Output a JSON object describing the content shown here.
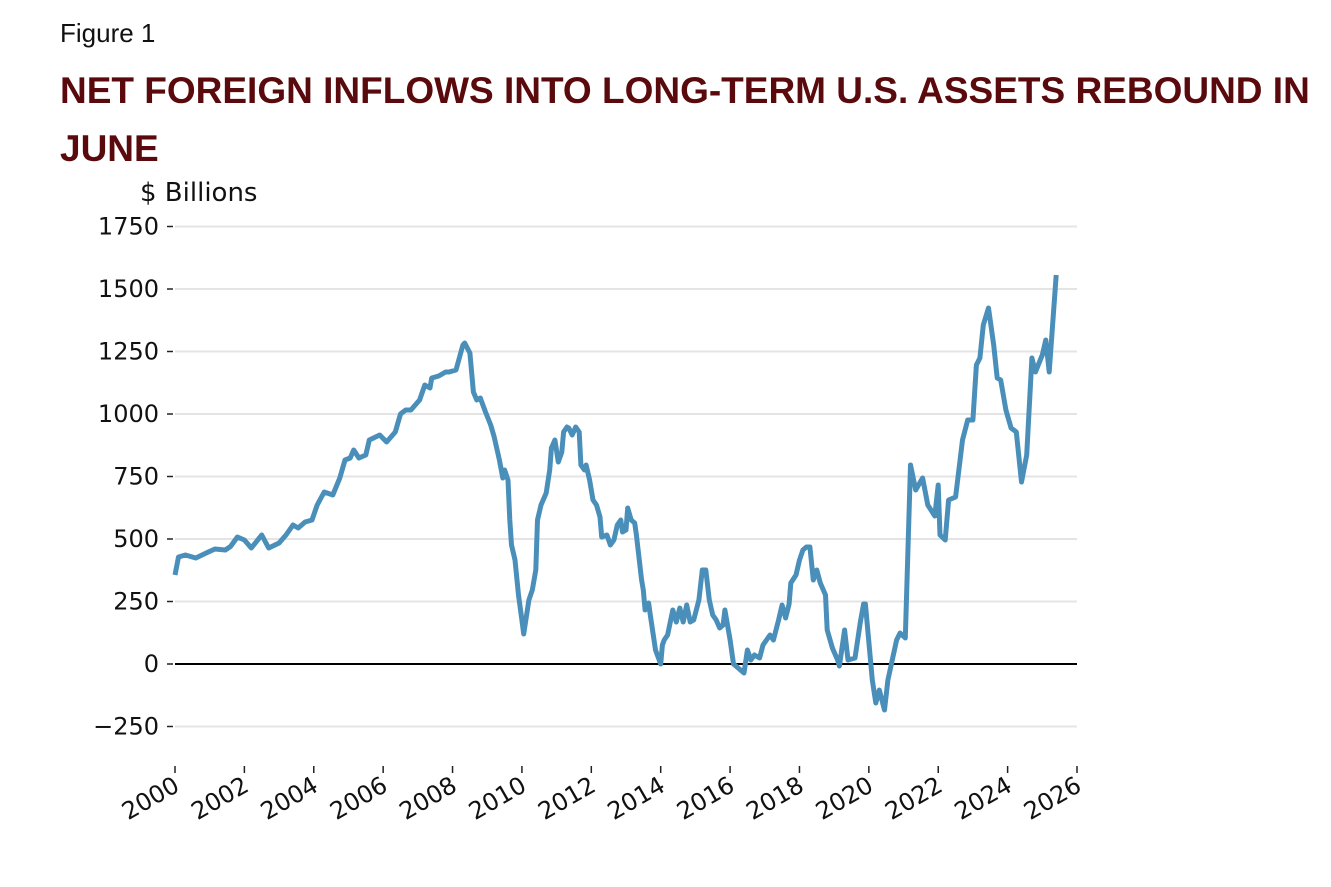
{
  "figure_label": "Figure 1",
  "chart_data": {
    "type": "line",
    "title": "NET FOREIGN INFLOWS INTO LONG-TERM U.S. ASSETS REBOUND IN JUNE",
    "ylabel": "$ Billions",
    "xlabel": "",
    "xlim": [
      2000,
      2026
    ],
    "ylim": [
      -350,
      1800
    ],
    "x_ticks": [
      "2000",
      "2002",
      "2004",
      "2006",
      "2008",
      "2010",
      "2012",
      "2014",
      "2016",
      "2018",
      "2020",
      "2022",
      "2024",
      "2026"
    ],
    "y_ticks": [
      "−250",
      "0",
      "250",
      "500",
      "750",
      "1000",
      "1250",
      "1500",
      "1750"
    ],
    "y_tick_values": [
      -250,
      0,
      250,
      500,
      750,
      1000,
      1250,
      1500,
      1750
    ],
    "grid": "horizontal",
    "zero_line": true,
    "line_color": "#4a8fba",
    "series": [
      {
        "points": [
          [
            2000.0,
            356
          ],
          [
            2000.1,
            428
          ],
          [
            2000.3,
            436
          ],
          [
            2000.6,
            424
          ],
          [
            2000.9,
            444
          ],
          [
            2001.15,
            460
          ],
          [
            2001.45,
            456
          ],
          [
            2001.6,
            470
          ],
          [
            2001.8,
            508
          ],
          [
            2002.0,
            496
          ],
          [
            2002.2,
            464
          ],
          [
            2002.5,
            516
          ],
          [
            2002.7,
            464
          ],
          [
            2003.0,
            484
          ],
          [
            2003.2,
            516
          ],
          [
            2003.4,
            556
          ],
          [
            2003.55,
            544
          ],
          [
            2003.75,
            568
          ],
          [
            2003.95,
            576
          ],
          [
            2004.1,
            636
          ],
          [
            2004.3,
            688
          ],
          [
            2004.55,
            676
          ],
          [
            2004.75,
            744
          ],
          [
            2004.9,
            816
          ],
          [
            2005.05,
            824
          ],
          [
            2005.15,
            856
          ],
          [
            2005.3,
            824
          ],
          [
            2005.5,
            836
          ],
          [
            2005.6,
            896
          ],
          [
            2005.9,
            916
          ],
          [
            2006.1,
            888
          ],
          [
            2006.35,
            928
          ],
          [
            2006.5,
            1000
          ],
          [
            2006.65,
            1016
          ],
          [
            2006.8,
            1016
          ],
          [
            2007.05,
            1056
          ],
          [
            2007.2,
            1116
          ],
          [
            2007.35,
            1104
          ],
          [
            2007.4,
            1144
          ],
          [
            2007.6,
            1152
          ],
          [
            2007.8,
            1168
          ],
          [
            2007.9,
            1168
          ],
          [
            2008.1,
            1176
          ],
          [
            2008.3,
            1276
          ],
          [
            2008.35,
            1284
          ],
          [
            2008.5,
            1244
          ],
          [
            2008.6,
            1088
          ],
          [
            2008.7,
            1056
          ],
          [
            2008.8,
            1064
          ],
          [
            2008.95,
            1008
          ],
          [
            2009.1,
            956
          ],
          [
            2009.2,
            908
          ],
          [
            2009.35,
            816
          ],
          [
            2009.45,
            744
          ],
          [
            2009.5,
            776
          ],
          [
            2009.6,
            736
          ],
          [
            2009.65,
            576
          ],
          [
            2009.7,
            476
          ],
          [
            2009.8,
            416
          ],
          [
            2009.9,
            276
          ],
          [
            2010.0,
            176
          ],
          [
            2010.05,
            120
          ],
          [
            2010.2,
            256
          ],
          [
            2010.3,
            296
          ],
          [
            2010.4,
            376
          ],
          [
            2010.45,
            576
          ],
          [
            2010.55,
            636
          ],
          [
            2010.7,
            684
          ],
          [
            2010.8,
            776
          ],
          [
            2010.85,
            864
          ],
          [
            2010.95,
            896
          ],
          [
            2011.05,
            808
          ],
          [
            2011.15,
            848
          ],
          [
            2011.2,
            928
          ],
          [
            2011.3,
            948
          ],
          [
            2011.35,
            944
          ],
          [
            2011.45,
            916
          ],
          [
            2011.55,
            948
          ],
          [
            2011.65,
            928
          ],
          [
            2011.7,
            796
          ],
          [
            2011.8,
            776
          ],
          [
            2011.85,
            796
          ],
          [
            2011.95,
            736
          ],
          [
            2012.05,
            656
          ],
          [
            2012.15,
            636
          ],
          [
            2012.25,
            588
          ],
          [
            2012.3,
            508
          ],
          [
            2012.45,
            516
          ],
          [
            2012.55,
            476
          ],
          [
            2012.65,
            496
          ],
          [
            2012.75,
            556
          ],
          [
            2012.85,
            576
          ],
          [
            2012.9,
            528
          ],
          [
            2013.0,
            536
          ],
          [
            2013.05,
            624
          ],
          [
            2013.15,
            576
          ],
          [
            2013.25,
            564
          ],
          [
            2013.3,
            516
          ],
          [
            2013.45,
            336
          ],
          [
            2013.5,
            296
          ],
          [
            2013.55,
            216
          ],
          [
            2013.65,
            244
          ],
          [
            2013.7,
            196
          ],
          [
            2013.85,
            56
          ],
          [
            2014.0,
            0
          ],
          [
            2014.05,
            76
          ],
          [
            2014.1,
            96
          ],
          [
            2014.2,
            116
          ],
          [
            2014.35,
            216
          ],
          [
            2014.45,
            168
          ],
          [
            2014.55,
            224
          ],
          [
            2014.65,
            168
          ],
          [
            2014.75,
            236
          ],
          [
            2014.85,
            168
          ],
          [
            2014.95,
            176
          ],
          [
            2015.1,
            256
          ],
          [
            2015.2,
            376
          ],
          [
            2015.3,
            376
          ],
          [
            2015.4,
            256
          ],
          [
            2015.5,
            196
          ],
          [
            2015.6,
            176
          ],
          [
            2015.7,
            144
          ],
          [
            2015.8,
            156
          ],
          [
            2015.85,
            216
          ],
          [
            2016.0,
            96
          ],
          [
            2016.1,
            0
          ],
          [
            2016.4,
            -36
          ],
          [
            2016.5,
            56
          ],
          [
            2016.6,
            16
          ],
          [
            2016.7,
            36
          ],
          [
            2016.85,
            24
          ],
          [
            2016.95,
            76
          ],
          [
            2017.15,
            116
          ],
          [
            2017.25,
            96
          ],
          [
            2017.4,
            176
          ],
          [
            2017.5,
            236
          ],
          [
            2017.6,
            184
          ],
          [
            2017.7,
            240
          ],
          [
            2017.75,
            324
          ],
          [
            2017.9,
            356
          ],
          [
            2018.0,
            416
          ],
          [
            2018.1,
            456
          ],
          [
            2018.2,
            468
          ],
          [
            2018.3,
            468
          ],
          [
            2018.4,
            336
          ],
          [
            2018.5,
            376
          ],
          [
            2018.6,
            324
          ],
          [
            2018.75,
            276
          ],
          [
            2018.8,
            136
          ],
          [
            2018.95,
            64
          ],
          [
            2019.1,
            16
          ],
          [
            2019.15,
            -8
          ],
          [
            2019.3,
            136
          ],
          [
            2019.4,
            16
          ],
          [
            2019.6,
            24
          ],
          [
            2019.75,
            164
          ],
          [
            2019.85,
            240
          ],
          [
            2019.9,
            240
          ],
          [
            2020.1,
            -64
          ],
          [
            2020.2,
            -156
          ],
          [
            2020.3,
            -104
          ],
          [
            2020.45,
            -184
          ],
          [
            2020.55,
            -64
          ],
          [
            2020.65,
            0
          ],
          [
            2020.8,
            96
          ],
          [
            2020.9,
            124
          ],
          [
            2021.05,
            104
          ],
          [
            2021.2,
            796
          ],
          [
            2021.35,
            696
          ],
          [
            2021.55,
            744
          ],
          [
            2021.7,
            636
          ],
          [
            2021.9,
            592
          ],
          [
            2022.0,
            716
          ],
          [
            2022.05,
            516
          ],
          [
            2022.2,
            496
          ],
          [
            2022.3,
            656
          ],
          [
            2022.5,
            668
          ],
          [
            2022.7,
            896
          ],
          [
            2022.85,
            976
          ],
          [
            2023.0,
            976
          ],
          [
            2023.1,
            1196
          ],
          [
            2023.2,
            1224
          ],
          [
            2023.3,
            1356
          ],
          [
            2023.45,
            1424
          ],
          [
            2023.6,
            1276
          ],
          [
            2023.7,
            1144
          ],
          [
            2023.8,
            1136
          ],
          [
            2023.95,
            1016
          ],
          [
            2024.1,
            944
          ],
          [
            2024.25,
            928
          ],
          [
            2024.4,
            728
          ],
          [
            2024.55,
            836
          ],
          [
            2024.7,
            1224
          ],
          [
            2024.8,
            1168
          ],
          [
            2025.0,
            1236
          ],
          [
            2025.1,
            1296
          ],
          [
            2025.2,
            1168
          ],
          [
            2025.4,
            1556
          ]
        ]
      }
    ]
  }
}
